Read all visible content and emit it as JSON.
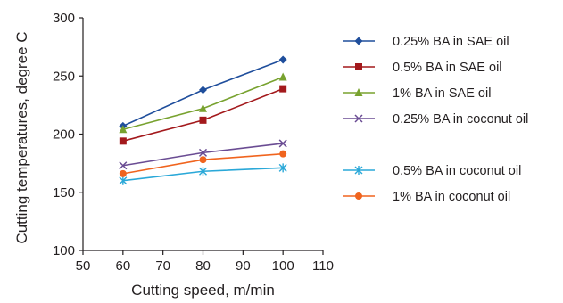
{
  "chart_data": {
    "type": "line",
    "xlabel": "Cutting speed, m/min",
    "ylabel": "Cutting temperatures, degree C",
    "xlim": [
      50,
      110
    ],
    "ylim": [
      100,
      300
    ],
    "xticks": [
      "50",
      "60",
      "70",
      "80",
      "90",
      "100",
      "110"
    ],
    "yticks": [
      "100",
      "150",
      "200",
      "250",
      "300"
    ],
    "grid": false,
    "legend_position": "right",
    "x": [
      60,
      80,
      100
    ],
    "series": [
      {
        "name": "0.25% BA in SAE oil",
        "values": [
          207,
          238,
          264
        ],
        "color": "#1f4e9c",
        "marker": "diamond"
      },
      {
        "name": "0.5% BA in SAE oil",
        "values": [
          194,
          212,
          239
        ],
        "color": "#a3191c",
        "marker": "square"
      },
      {
        "name": "1% BA in SAE oil",
        "values": [
          204,
          222,
          249
        ],
        "color": "#78a22f",
        "marker": "triangle"
      },
      {
        "name": "0.25% BA in coconut oil",
        "values": [
          173,
          184,
          192
        ],
        "color": "#6a4c93",
        "marker": "x"
      },
      {
        "name": "0.5% BA in coconut oil",
        "values": [
          160,
          168,
          171
        ],
        "color": "#2aa8d8",
        "marker": "star"
      },
      {
        "name": "1% BA in coconut oil",
        "values": [
          166,
          178,
          183
        ],
        "color": "#f0641e",
        "marker": "circle"
      }
    ]
  }
}
